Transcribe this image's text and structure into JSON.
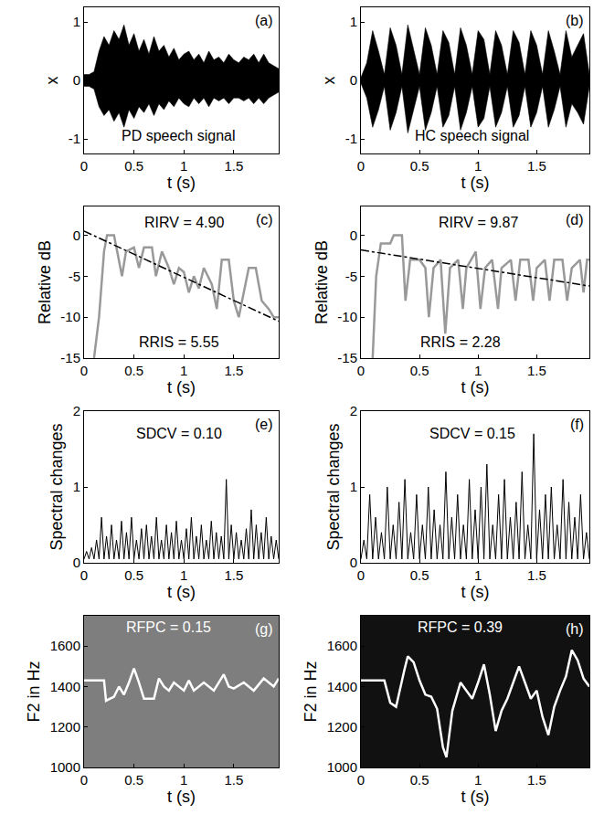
{
  "chart_data": [
    {
      "type": "area",
      "panel": "(a)",
      "x_label": "t (s)",
      "y_label": "x",
      "xlim": [
        0,
        1.95
      ],
      "xticks": [
        0,
        0.5,
        1,
        1.5
      ],
      "ylim": [
        -1.25,
        1.25
      ],
      "yticks": [
        -1,
        0,
        1
      ],
      "x": [
        0,
        0.05,
        0.1,
        0.15,
        0.2,
        0.25,
        0.3,
        0.35,
        0.4,
        0.45,
        0.5,
        0.55,
        0.6,
        0.65,
        0.7,
        0.75,
        0.8,
        0.85,
        0.9,
        0.95,
        1,
        1.05,
        1.1,
        1.15,
        1.2,
        1.25,
        1.3,
        1.35,
        1.4,
        1.45,
        1.5,
        1.55,
        1.6,
        1.65,
        1.7,
        1.75,
        1.8,
        1.85,
        1.9,
        1.95
      ],
      "series": [
        {
          "color": "#000000",
          "values": [
            0.1,
            0.1,
            0.15,
            0.5,
            0.75,
            0.6,
            0.85,
            0.7,
            0.95,
            0.6,
            0.8,
            0.5,
            0.7,
            0.45,
            0.75,
            0.5,
            0.6,
            0.4,
            0.55,
            0.35,
            0.45,
            0.5,
            0.35,
            0.45,
            0.3,
            0.5,
            0.35,
            0.4,
            0.3,
            0.45,
            0.35,
            0.3,
            0.4,
            0.35,
            0.45,
            0.3,
            0.45,
            0.3,
            0.25,
            0.2
          ]
        },
        {
          "color": "#000000",
          "values": [
            -0.1,
            -0.1,
            -0.15,
            -0.45,
            -0.6,
            -0.5,
            -0.7,
            -0.55,
            -0.8,
            -0.5,
            -0.65,
            -0.45,
            -0.55,
            -0.4,
            -0.6,
            -0.4,
            -0.5,
            -0.35,
            -0.45,
            -0.3,
            -0.4,
            -0.45,
            -0.3,
            -0.4,
            -0.3,
            -0.45,
            -0.3,
            -0.35,
            -0.3,
            -0.4,
            -0.3,
            -0.3,
            -0.35,
            -0.3,
            -0.4,
            -0.3,
            -0.4,
            -0.3,
            -0.25,
            -0.2
          ]
        }
      ],
      "annotations": [
        {
          "text": "PD speech signal",
          "x": 0.95,
          "y": -0.95
        }
      ]
    },
    {
      "type": "area",
      "panel": "(b)",
      "x_label": "t (s)",
      "y_label": "x",
      "xlim": [
        0,
        1.95
      ],
      "xticks": [
        0,
        0.5,
        1,
        1.5
      ],
      "ylim": [
        -1.25,
        1.25
      ],
      "yticks": [
        -1,
        0,
        1
      ],
      "x": [
        0,
        0.05,
        0.1,
        0.15,
        0.2,
        0.25,
        0.3,
        0.35,
        0.4,
        0.45,
        0.5,
        0.55,
        0.6,
        0.65,
        0.7,
        0.75,
        0.8,
        0.85,
        0.9,
        0.95,
        1,
        1.05,
        1.1,
        1.15,
        1.2,
        1.25,
        1.3,
        1.35,
        1.4,
        1.45,
        1.5,
        1.55,
        1.6,
        1.65,
        1.7,
        1.75,
        1.8,
        1.85,
        1.9,
        1.95
      ],
      "series": [
        {
          "color": "#000000",
          "values": [
            0.05,
            0.3,
            0.85,
            0.5,
            0.1,
            0.9,
            0.6,
            0.1,
            0.95,
            0.5,
            0.1,
            0.9,
            0.6,
            0.1,
            0.85,
            0.65,
            0.1,
            0.9,
            0.6,
            0.1,
            0.85,
            0.7,
            0.1,
            0.85,
            0.6,
            0.1,
            0.85,
            0.65,
            0.1,
            0.85,
            0.6,
            0.1,
            0.85,
            0.5,
            0.1,
            0.85,
            0.4,
            0.6,
            0.8,
            0.1
          ]
        },
        {
          "color": "#000000",
          "values": [
            -0.05,
            -0.3,
            -0.8,
            -0.5,
            -0.1,
            -0.85,
            -0.55,
            -0.1,
            -0.9,
            -0.5,
            -0.1,
            -0.85,
            -0.55,
            -0.1,
            -0.8,
            -0.6,
            -0.1,
            -0.85,
            -0.55,
            -0.1,
            -0.8,
            -0.65,
            -0.1,
            -0.8,
            -0.55,
            -0.1,
            -0.8,
            -0.6,
            -0.1,
            -0.8,
            -0.55,
            -0.1,
            -0.8,
            -0.5,
            -0.1,
            -0.8,
            -0.4,
            -0.55,
            -0.75,
            -0.1
          ]
        }
      ],
      "annotations": [
        {
          "text": "HC speech signal",
          "x": 0.95,
          "y": -0.95
        }
      ]
    },
    {
      "type": "line",
      "panel": "(c)",
      "x_label": "t (s)",
      "y_label": "Relative dB",
      "xlim": [
        0,
        1.95
      ],
      "xticks": [
        0,
        0.5,
        1,
        1.5
      ],
      "ylim": [
        -15,
        3.5
      ],
      "yticks": [
        -15,
        -10,
        -5,
        0
      ],
      "series": [
        {
          "color": "#999999",
          "line_style": "solid",
          "x": [
            0.1,
            0.15,
            0.2,
            0.23,
            0.3,
            0.35,
            0.38,
            0.42,
            0.5,
            0.55,
            0.6,
            0.68,
            0.72,
            0.78,
            0.85,
            0.9,
            0.95,
            1.0,
            1.05,
            1.1,
            1.15,
            1.2,
            1.28,
            1.33,
            1.38,
            1.45,
            1.5,
            1.55,
            1.6,
            1.65,
            1.72,
            1.78,
            1.85,
            1.9,
            1.95
          ],
          "values": [
            -15,
            -10,
            -2,
            0,
            0,
            -3,
            -5,
            -2,
            -1.5,
            -4,
            -1.5,
            -1.5,
            -5,
            -2,
            -4,
            -6,
            -4,
            -4.5,
            -7,
            -5,
            -6.5,
            -4,
            -6,
            -9,
            -3,
            -3,
            -8,
            -10,
            -7,
            -4,
            -4,
            -8,
            -9,
            -10,
            -10
          ]
        },
        {
          "color": "#000000",
          "line_style": "dashdot",
          "x": [
            0,
            1.95
          ],
          "values": [
            0.5,
            -10.5
          ]
        }
      ],
      "annotations": [
        {
          "text": "RIRV = 4.90",
          "x": 1.0,
          "y": 1.6
        },
        {
          "text": "RRIS = 5.55",
          "x": 0.95,
          "y": -13
        }
      ]
    },
    {
      "type": "line",
      "panel": "(d)",
      "x_label": "t (s)",
      "y_label": "Relative dB",
      "xlim": [
        0,
        1.95
      ],
      "xticks": [
        0,
        0.5,
        1,
        1.5
      ],
      "ylim": [
        -15,
        3.5
      ],
      "yticks": [
        -15,
        -10,
        -5,
        0
      ],
      "series": [
        {
          "color": "#999999",
          "line_style": "solid",
          "x": [
            0.1,
            0.13,
            0.17,
            0.25,
            0.28,
            0.35,
            0.38,
            0.42,
            0.5,
            0.55,
            0.58,
            0.62,
            0.68,
            0.72,
            0.76,
            0.83,
            0.87,
            0.9,
            0.98,
            1.02,
            1.06,
            1.12,
            1.17,
            1.2,
            1.28,
            1.32,
            1.36,
            1.43,
            1.47,
            1.5,
            1.57,
            1.61,
            1.65,
            1.72,
            1.76,
            1.8,
            1.87,
            1.9,
            1.93,
            1.95
          ],
          "values": [
            -15,
            -5,
            -1,
            -1,
            0,
            0,
            -8,
            -3,
            -3,
            -4,
            -10,
            -4,
            -3,
            -12,
            -4,
            -3,
            -9,
            -4,
            -2,
            -9,
            -4,
            -3,
            -9,
            -4,
            -3,
            -8,
            -3,
            -3,
            -8,
            -4,
            -3,
            -8,
            -3,
            -3,
            -8,
            -4,
            -3,
            -7,
            -3,
            -3
          ]
        },
        {
          "color": "#000000",
          "line_style": "dashdot",
          "x": [
            0,
            1.95
          ],
          "values": [
            -1.8,
            -6.2
          ]
        }
      ],
      "annotations": [
        {
          "text": "RIRV = 9.87",
          "x": 1.0,
          "y": 1.6
        },
        {
          "text": "RRIS = 2.28",
          "x": 0.85,
          "y": -13
        }
      ]
    },
    {
      "type": "line",
      "panel": "(e)",
      "x_label": "t (s)",
      "y_label": "Spectral changes",
      "xlim": [
        0,
        1.95
      ],
      "xticks": [
        0,
        0.5,
        1,
        1.5
      ],
      "ylim": [
        0,
        2
      ],
      "yticks": [
        0,
        1,
        2
      ],
      "x": [
        0,
        0.025,
        0.05,
        0.075,
        0.1,
        0.125,
        0.15,
        0.175,
        0.2,
        0.225,
        0.25,
        0.275,
        0.3,
        0.325,
        0.35,
        0.375,
        0.4,
        0.425,
        0.45,
        0.475,
        0.5,
        0.525,
        0.55,
        0.575,
        0.6,
        0.625,
        0.65,
        0.675,
        0.7,
        0.725,
        0.75,
        0.775,
        0.8,
        0.825,
        0.85,
        0.875,
        0.9,
        0.925,
        0.95,
        0.975,
        1,
        1.025,
        1.05,
        1.075,
        1.1,
        1.125,
        1.15,
        1.175,
        1.2,
        1.225,
        1.25,
        1.275,
        1.3,
        1.325,
        1.35,
        1.375,
        1.4,
        1.425,
        1.45,
        1.475,
        1.5,
        1.525,
        1.55,
        1.575,
        1.6,
        1.625,
        1.65,
        1.675,
        1.7,
        1.725,
        1.75,
        1.775,
        1.8,
        1.825,
        1.85,
        1.875,
        1.9,
        1.925,
        1.95
      ],
      "series": [
        {
          "color": "#000000",
          "line_style": "solid",
          "values": [
            0.05,
            0.15,
            0.05,
            0.2,
            0.05,
            0.3,
            0.05,
            0.6,
            0.05,
            0.35,
            0.05,
            0.5,
            0.05,
            0.3,
            0.05,
            0.55,
            0.05,
            0.4,
            0.05,
            0.6,
            0.05,
            0.3,
            0.05,
            0.45,
            0.05,
            0.5,
            0.05,
            0.35,
            0.05,
            0.6,
            0.05,
            0.3,
            0.05,
            0.5,
            0.05,
            0.4,
            0.05,
            0.55,
            0.05,
            0.3,
            0.05,
            0.45,
            0.05,
            0.6,
            0.05,
            0.35,
            0.05,
            0.5,
            0.05,
            0.3,
            0.05,
            0.55,
            0.05,
            0.4,
            0.05,
            0.35,
            0.05,
            1.1,
            0.05,
            0.5,
            0.05,
            0.4,
            0.05,
            0.3,
            0.05,
            0.45,
            0.05,
            0.7,
            0.05,
            0.5,
            0.05,
            0.4,
            0.05,
            0.6,
            0.05,
            0.35,
            0.05,
            0.3,
            0.05
          ]
        }
      ],
      "annotations": [
        {
          "text": "SDCV = 0.10",
          "x": 0.95,
          "y": 1.7
        }
      ]
    },
    {
      "type": "line",
      "panel": "(f)",
      "x_label": "t (s)",
      "y_label": "Spectral changes",
      "xlim": [
        0,
        1.95
      ],
      "xticks": [
        0,
        0.5,
        1,
        1.5
      ],
      "ylim": [
        0,
        2
      ],
      "yticks": [
        0,
        1,
        2
      ],
      "x": [
        0,
        0.025,
        0.05,
        0.075,
        0.1,
        0.125,
        0.15,
        0.175,
        0.2,
        0.225,
        0.25,
        0.275,
        0.3,
        0.325,
        0.35,
        0.375,
        0.4,
        0.425,
        0.45,
        0.475,
        0.5,
        0.525,
        0.55,
        0.575,
        0.6,
        0.625,
        0.65,
        0.675,
        0.7,
        0.725,
        0.75,
        0.775,
        0.8,
        0.825,
        0.85,
        0.875,
        0.9,
        0.925,
        0.95,
        0.975,
        1,
        1.025,
        1.05,
        1.075,
        1.1,
        1.125,
        1.15,
        1.175,
        1.2,
        1.225,
        1.25,
        1.275,
        1.3,
        1.325,
        1.35,
        1.375,
        1.4,
        1.425,
        1.45,
        1.475,
        1.5,
        1.525,
        1.55,
        1.575,
        1.6,
        1.625,
        1.65,
        1.675,
        1.7,
        1.725,
        1.75,
        1.775,
        1.8,
        1.825,
        1.85,
        1.875,
        1.9,
        1.925,
        1.95
      ],
      "series": [
        {
          "color": "#000000",
          "line_style": "solid",
          "values": [
            0.05,
            0.3,
            0.05,
            0.9,
            0.05,
            0.6,
            0.05,
            0.4,
            0.05,
            1.0,
            0.05,
            0.5,
            0.05,
            0.8,
            0.05,
            1.1,
            0.05,
            0.4,
            0.05,
            0.9,
            0.05,
            0.5,
            0.05,
            1.0,
            0.05,
            0.7,
            0.05,
            0.5,
            0.05,
            1.2,
            0.05,
            0.6,
            0.05,
            0.9,
            0.05,
            0.5,
            0.05,
            1.1,
            0.05,
            0.7,
            0.05,
            1.0,
            0.05,
            1.3,
            0.05,
            0.5,
            0.05,
            0.9,
            0.05,
            1.1,
            0.05,
            0.6,
            0.05,
            0.8,
            0.05,
            1.2,
            0.05,
            0.5,
            0.05,
            1.7,
            0.05,
            0.7,
            0.05,
            0.9,
            0.05,
            1.0,
            0.05,
            0.5,
            0.05,
            1.1,
            0.05,
            0.8,
            0.05,
            0.6,
            0.05,
            0.9,
            0.05,
            0.4,
            0.05
          ]
        }
      ],
      "annotations": [
        {
          "text": "SDCV = 0.15",
          "x": 0.95,
          "y": 1.7
        }
      ]
    },
    {
      "type": "spectrogram",
      "panel": "(g)",
      "x_label": "t (s)",
      "y_label": "F2 in Hz",
      "xlim": [
        0,
        1.95
      ],
      "xticks": [
        0,
        0.5,
        1,
        1.5
      ],
      "ylim": [
        1000,
        1750
      ],
      "yticks": [
        1000,
        1200,
        1400,
        1600
      ],
      "series": [
        {
          "color": "#ffffff",
          "line_style": "solid",
          "x": [
            0,
            0.2,
            0.22,
            0.3,
            0.35,
            0.4,
            0.45,
            0.5,
            0.55,
            0.6,
            0.7,
            0.75,
            0.8,
            0.85,
            0.9,
            1.0,
            1.05,
            1.1,
            1.2,
            1.3,
            1.4,
            1.45,
            1.5,
            1.6,
            1.7,
            1.8,
            1.9,
            1.95
          ],
          "values": [
            1430,
            1430,
            1330,
            1350,
            1400,
            1360,
            1420,
            1490,
            1420,
            1340,
            1340,
            1440,
            1400,
            1380,
            1420,
            1380,
            1430,
            1380,
            1420,
            1380,
            1460,
            1400,
            1390,
            1420,
            1380,
            1440,
            1400,
            1440
          ]
        }
      ],
      "annotations": [
        {
          "text": "RFPC = 0.15",
          "x": 0.85,
          "y": 1695
        }
      ]
    },
    {
      "type": "spectrogram",
      "panel": "(h)",
      "x_label": "t (s)",
      "y_label": "F2 in Hz",
      "xlim": [
        0,
        1.95
      ],
      "xticks": [
        0,
        0.5,
        1,
        1.5
      ],
      "ylim": [
        1000,
        1750
      ],
      "yticks": [
        1000,
        1200,
        1400,
        1600
      ],
      "series": [
        {
          "color": "#ffffff",
          "line_style": "solid",
          "x": [
            0,
            0.2,
            0.25,
            0.3,
            0.37,
            0.4,
            0.45,
            0.5,
            0.55,
            0.6,
            0.65,
            0.7,
            0.73,
            0.78,
            0.85,
            0.9,
            0.95,
            1.0,
            1.05,
            1.1,
            1.15,
            1.2,
            1.25,
            1.3,
            1.35,
            1.4,
            1.45,
            1.5,
            1.55,
            1.6,
            1.65,
            1.7,
            1.75,
            1.8,
            1.85,
            1.9,
            1.95
          ],
          "values": [
            1430,
            1430,
            1320,
            1300,
            1480,
            1550,
            1520,
            1430,
            1360,
            1350,
            1290,
            1100,
            1050,
            1280,
            1420,
            1380,
            1340,
            1420,
            1510,
            1360,
            1180,
            1280,
            1340,
            1420,
            1500,
            1420,
            1340,
            1380,
            1250,
            1160,
            1300,
            1380,
            1450,
            1580,
            1530,
            1440,
            1400
          ]
        }
      ],
      "annotations": [
        {
          "text": "RFPC = 0.39",
          "x": 0.85,
          "y": 1695
        }
      ]
    }
  ]
}
